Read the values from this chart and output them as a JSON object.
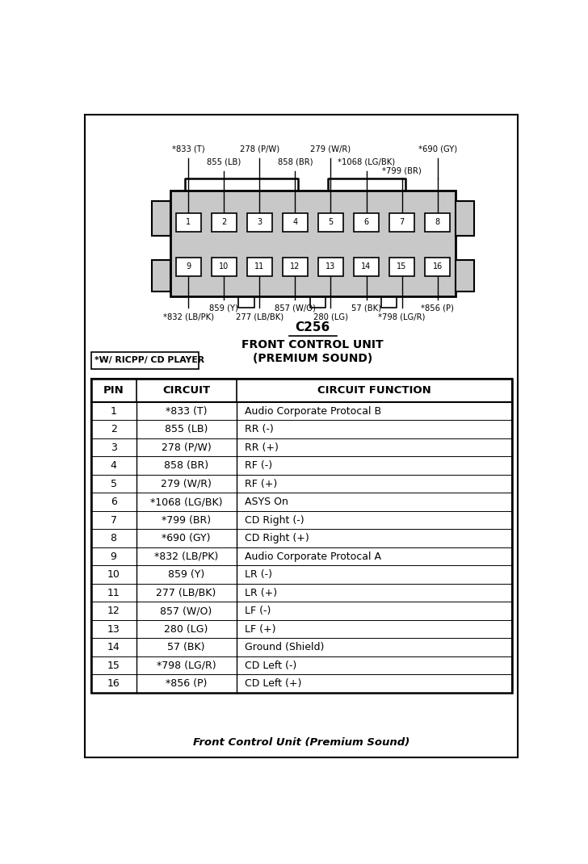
{
  "title": "C256",
  "subtitle1": "FRONT CONTROL UNIT",
  "subtitle2": "(PREMIUM SOUND)",
  "note_label": "*W/ RICPP/ CD PLAYER",
  "footer": "Front Control Unit (Premium Sound)",
  "top_pin_labels": [
    "*833 (T)",
    "855 (LB)",
    "278 (P/W)",
    "858 (BR)",
    "279 (W/R)",
    "*1068 (LG/BK)",
    "*799 (BR)",
    "*690 (GY)"
  ],
  "bot_pin_labels": [
    "*832 (LB/PK)",
    "859 (Y)",
    "277 (LB/BK)",
    "857 (W/O)",
    "280 (LG)",
    "57 (BK)",
    "*798 (LG/R)",
    "*856 (P)"
  ],
  "table_headers": [
    "PIN",
    "CIRCUIT",
    "CIRCUIT FUNCTION"
  ],
  "table_rows": [
    [
      "1",
      "*833 (T)",
      "Audio Corporate Protocal B"
    ],
    [
      "2",
      "855 (LB)",
      "RR (-)"
    ],
    [
      "3",
      "278 (P/W)",
      "RR (+)"
    ],
    [
      "4",
      "858 (BR)",
      "RF (-)"
    ],
    [
      "5",
      "279 (W/R)",
      "RF (+)"
    ],
    [
      "6",
      "*1068 (LG/BK)",
      "ASYS On"
    ],
    [
      "7",
      "*799 (BR)",
      "CD Right (-)"
    ],
    [
      "8",
      "*690 (GY)",
      "CD Right (+)"
    ],
    [
      "9",
      "*832 (LB/PK)",
      "Audio Corporate Protocal A"
    ],
    [
      "10",
      "859 (Y)",
      "LR (-)"
    ],
    [
      "11",
      "277 (LB/BK)",
      "LR (+)"
    ],
    [
      "12",
      "857 (W/O)",
      "LF (-)"
    ],
    [
      "13",
      "280 (LG)",
      "LF (+)"
    ],
    [
      "14",
      "57 (BK)",
      "Ground (Shield)"
    ],
    [
      "15",
      "*798 (LG/R)",
      "CD Left (-)"
    ],
    [
      "16",
      "*856 (P)",
      "CD Left (+)"
    ]
  ],
  "bg_color": "#ffffff",
  "connector_fill": "#c8c8c8",
  "pin_fill": "#ffffff"
}
